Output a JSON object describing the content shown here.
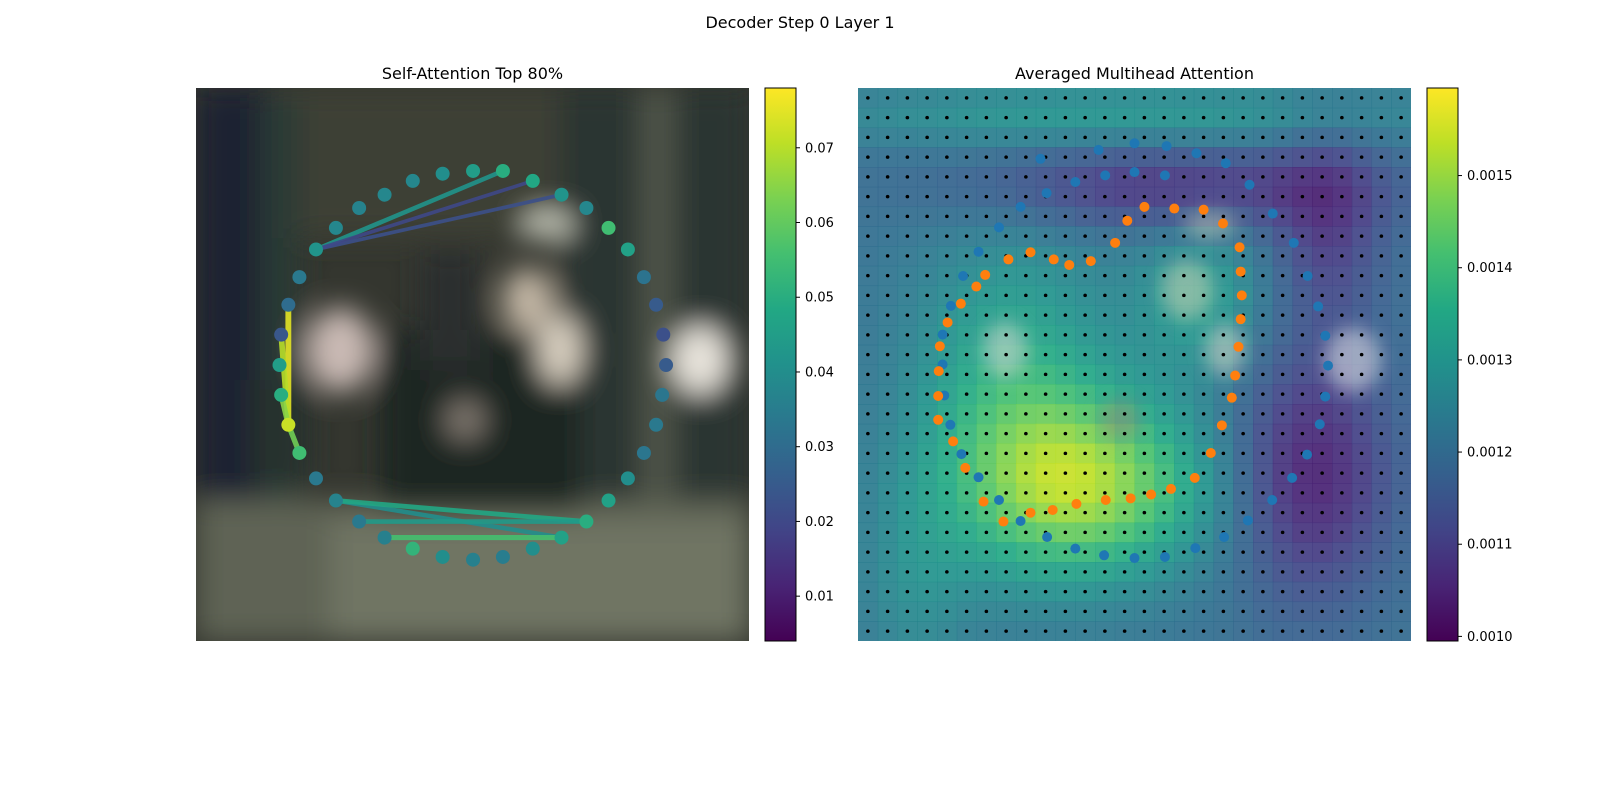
{
  "figure": {
    "suptitle": "Decoder Step 0 Layer 1"
  },
  "chart_data": [
    {
      "type": "scatter",
      "title": "Self-Attention Top 80%",
      "xlabel": "",
      "ylabel": "",
      "grid": false,
      "colormap": "viridis",
      "colorbar": {
        "range": [
          0.004,
          0.078
        ],
        "ticks": [
          "0.01",
          "0.02",
          "0.03",
          "0.04",
          "0.05",
          "0.06",
          "0.07"
        ]
      },
      "points": [
        {
          "x": 0.555,
          "y": 0.15,
          "v": 0.05
        },
        {
          "x": 0.609,
          "y": 0.168,
          "v": 0.048
        },
        {
          "x": 0.661,
          "y": 0.193,
          "v": 0.042
        },
        {
          "x": 0.706,
          "y": 0.217,
          "v": 0.038
        },
        {
          "x": 0.746,
          "y": 0.253,
          "v": 0.055
        },
        {
          "x": 0.781,
          "y": 0.292,
          "v": 0.046
        },
        {
          "x": 0.81,
          "y": 0.342,
          "v": 0.032
        },
        {
          "x": 0.832,
          "y": 0.392,
          "v": 0.025
        },
        {
          "x": 0.845,
          "y": 0.446,
          "v": 0.022
        },
        {
          "x": 0.85,
          "y": 0.501,
          "v": 0.025
        },
        {
          "x": 0.843,
          "y": 0.555,
          "v": 0.033
        },
        {
          "x": 0.832,
          "y": 0.609,
          "v": 0.034
        },
        {
          "x": 0.81,
          "y": 0.66,
          "v": 0.033
        },
        {
          "x": 0.781,
          "y": 0.706,
          "v": 0.04
        },
        {
          "x": 0.746,
          "y": 0.746,
          "v": 0.046
        },
        {
          "x": 0.706,
          "y": 0.784,
          "v": 0.05
        },
        {
          "x": 0.661,
          "y": 0.813,
          "v": 0.046
        },
        {
          "x": 0.609,
          "y": 0.833,
          "v": 0.04
        },
        {
          "x": 0.555,
          "y": 0.848,
          "v": 0.035
        },
        {
          "x": 0.501,
          "y": 0.853,
          "v": 0.036
        },
        {
          "x": 0.446,
          "y": 0.848,
          "v": 0.04
        },
        {
          "x": 0.392,
          "y": 0.833,
          "v": 0.052
        },
        {
          "x": 0.341,
          "y": 0.813,
          "v": 0.036
        },
        {
          "x": 0.295,
          "y": 0.784,
          "v": 0.034
        },
        {
          "x": 0.253,
          "y": 0.746,
          "v": 0.037
        },
        {
          "x": 0.217,
          "y": 0.706,
          "v": 0.034
        },
        {
          "x": 0.187,
          "y": 0.66,
          "v": 0.055
        },
        {
          "x": 0.167,
          "y": 0.609,
          "v": 0.072
        },
        {
          "x": 0.154,
          "y": 0.555,
          "v": 0.05
        },
        {
          "x": 0.151,
          "y": 0.501,
          "v": 0.045
        },
        {
          "x": 0.154,
          "y": 0.446,
          "v": 0.024
        },
        {
          "x": 0.167,
          "y": 0.392,
          "v": 0.03
        },
        {
          "x": 0.187,
          "y": 0.342,
          "v": 0.034
        },
        {
          "x": 0.217,
          "y": 0.292,
          "v": 0.042
        },
        {
          "x": 0.253,
          "y": 0.253,
          "v": 0.038
        },
        {
          "x": 0.295,
          "y": 0.217,
          "v": 0.037
        },
        {
          "x": 0.341,
          "y": 0.193,
          "v": 0.038
        },
        {
          "x": 0.392,
          "y": 0.168,
          "v": 0.038
        },
        {
          "x": 0.446,
          "y": 0.155,
          "v": 0.04
        },
        {
          "x": 0.501,
          "y": 0.15,
          "v": 0.045
        }
      ],
      "edges": [
        {
          "from": 31,
          "to": 27,
          "v": 0.075
        },
        {
          "from": 30,
          "to": 27,
          "v": 0.07
        },
        {
          "from": 28,
          "to": 27,
          "v": 0.065
        },
        {
          "from": 27,
          "to": 26,
          "v": 0.062
        },
        {
          "from": 33,
          "to": 0,
          "v": 0.042
        },
        {
          "from": 33,
          "to": 2,
          "v": 0.022
        },
        {
          "from": 33,
          "to": 1,
          "v": 0.02
        },
        {
          "from": 24,
          "to": 16,
          "v": 0.04
        },
        {
          "from": 24,
          "to": 15,
          "v": 0.048
        },
        {
          "from": 22,
          "to": 16,
          "v": 0.056
        },
        {
          "from": 23,
          "to": 15,
          "v": 0.044
        }
      ]
    },
    {
      "type": "heatmap",
      "title": "Averaged Multihead Attention",
      "xlabel": "",
      "ylabel": "",
      "grid": false,
      "colormap": "viridis",
      "colorbar": {
        "range": [
          0.000995,
          0.001595
        ],
        "ticks": [
          "0.0010",
          "0.0011",
          "0.0012",
          "0.0013",
          "0.0014",
          "0.0015"
        ]
      },
      "grid_size": 28,
      "series": [
        {
          "points": [
            {
              "x": 0.33,
              "y": 0.128
            },
            {
              "x": 0.435,
              "y": 0.112
            },
            {
              "x": 0.5,
              "y": 0.1
            },
            {
              "x": 0.558,
              "y": 0.105
            },
            {
              "x": 0.612,
              "y": 0.118
            },
            {
              "x": 0.665,
              "y": 0.136
            },
            {
              "x": 0.708,
              "y": 0.175
            },
            {
              "x": 0.75,
              "y": 0.227
            },
            {
              "x": 0.788,
              "y": 0.28
            },
            {
              "x": 0.813,
              "y": 0.34
            },
            {
              "x": 0.832,
              "y": 0.395
            },
            {
              "x": 0.845,
              "y": 0.448
            },
            {
              "x": 0.85,
              "y": 0.502
            },
            {
              "x": 0.845,
              "y": 0.558
            },
            {
              "x": 0.835,
              "y": 0.608
            },
            {
              "x": 0.812,
              "y": 0.663
            },
            {
              "x": 0.785,
              "y": 0.705
            },
            {
              "x": 0.749,
              "y": 0.745
            },
            {
              "x": 0.705,
              "y": 0.782
            },
            {
              "x": 0.662,
              "y": 0.812
            },
            {
              "x": 0.61,
              "y": 0.832
            },
            {
              "x": 0.555,
              "y": 0.848
            },
            {
              "x": 0.5,
              "y": 0.85
            },
            {
              "x": 0.445,
              "y": 0.845
            },
            {
              "x": 0.393,
              "y": 0.833
            },
            {
              "x": 0.342,
              "y": 0.812
            },
            {
              "x": 0.294,
              "y": 0.783
            },
            {
              "x": 0.255,
              "y": 0.745
            },
            {
              "x": 0.218,
              "y": 0.704
            },
            {
              "x": 0.187,
              "y": 0.662
            },
            {
              "x": 0.167,
              "y": 0.609
            },
            {
              "x": 0.156,
              "y": 0.556
            },
            {
              "x": 0.153,
              "y": 0.5
            },
            {
              "x": 0.153,
              "y": 0.446
            },
            {
              "x": 0.168,
              "y": 0.394
            },
            {
              "x": 0.19,
              "y": 0.34
            },
            {
              "x": 0.218,
              "y": 0.296
            },
            {
              "x": 0.255,
              "y": 0.252
            },
            {
              "x": 0.294,
              "y": 0.215
            },
            {
              "x": 0.341,
              "y": 0.19
            },
            {
              "x": 0.393,
              "y": 0.17
            },
            {
              "x": 0.447,
              "y": 0.158
            },
            {
              "x": 0.5,
              "y": 0.152
            },
            {
              "x": 0.555,
              "y": 0.158
            }
          ]
        },
        {
          "points": [
            {
              "x": 0.518,
              "y": 0.215
            },
            {
              "x": 0.572,
              "y": 0.218
            },
            {
              "x": 0.625,
              "y": 0.22
            },
            {
              "x": 0.66,
              "y": 0.245
            },
            {
              "x": 0.69,
              "y": 0.288
            },
            {
              "x": 0.692,
              "y": 0.332
            },
            {
              "x": 0.694,
              "y": 0.375
            },
            {
              "x": 0.692,
              "y": 0.418
            },
            {
              "x": 0.688,
              "y": 0.468
            },
            {
              "x": 0.682,
              "y": 0.52
            },
            {
              "x": 0.676,
              "y": 0.56
            },
            {
              "x": 0.658,
              "y": 0.61
            },
            {
              "x": 0.638,
              "y": 0.66
            },
            {
              "x": 0.609,
              "y": 0.705
            },
            {
              "x": 0.566,
              "y": 0.725
            },
            {
              "x": 0.53,
              "y": 0.735
            },
            {
              "x": 0.493,
              "y": 0.742
            },
            {
              "x": 0.448,
              "y": 0.745
            },
            {
              "x": 0.395,
              "y": 0.752
            },
            {
              "x": 0.352,
              "y": 0.763
            },
            {
              "x": 0.312,
              "y": 0.768
            },
            {
              "x": 0.263,
              "y": 0.784
            },
            {
              "x": 0.227,
              "y": 0.748
            },
            {
              "x": 0.194,
              "y": 0.687
            },
            {
              "x": 0.172,
              "y": 0.639
            },
            {
              "x": 0.145,
              "y": 0.6
            },
            {
              "x": 0.145,
              "y": 0.557
            },
            {
              "x": 0.146,
              "y": 0.512
            },
            {
              "x": 0.148,
              "y": 0.467
            },
            {
              "x": 0.162,
              "y": 0.424
            },
            {
              "x": 0.186,
              "y": 0.39
            },
            {
              "x": 0.214,
              "y": 0.359
            },
            {
              "x": 0.23,
              "y": 0.338
            },
            {
              "x": 0.272,
              "y": 0.31
            },
            {
              "x": 0.312,
              "y": 0.297
            },
            {
              "x": 0.354,
              "y": 0.31
            },
            {
              "x": 0.382,
              "y": 0.32
            },
            {
              "x": 0.421,
              "y": 0.313
            },
            {
              "x": 0.465,
              "y": 0.28
            },
            {
              "x": 0.487,
              "y": 0.24
            }
          ]
        }
      ]
    }
  ]
}
